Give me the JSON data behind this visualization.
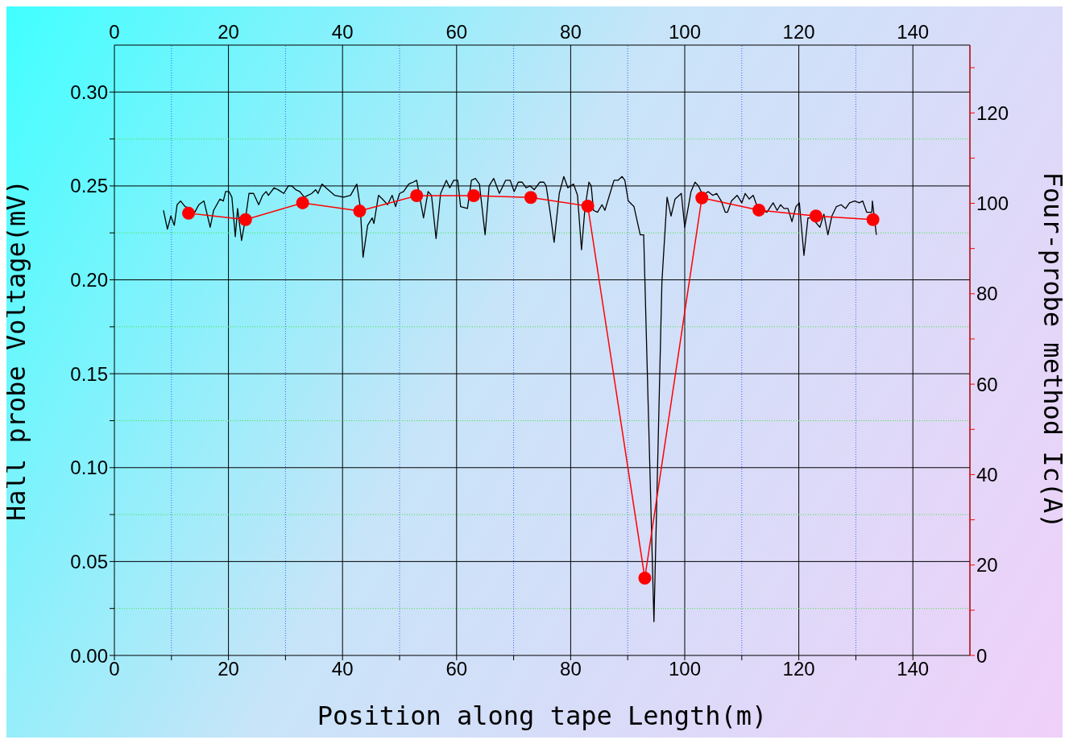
{
  "chart_data": {
    "type": "line",
    "xlabel": "Position along tape Length(m)",
    "ylabel": "Hall probe Voltage(mV)",
    "y2label": "Four-probe method Ic(A)",
    "xlim": [
      0,
      150
    ],
    "xticks": [
      0,
      {
        "value": 10,
        "label": null
      },
      20,
      {
        "value": 30,
        "label": null
      },
      40,
      {
        "value": 50,
        "label": null
      },
      60,
      {
        "value": 70,
        "label": null
      },
      80,
      {
        "value": 90,
        "label": null
      },
      100,
      {
        "value": 110,
        "label": null
      },
      120,
      {
        "value": 130,
        "label": null
      },
      140
    ],
    "x2lim": [
      0,
      150
    ],
    "x2ticks": [
      0,
      20,
      40,
      60,
      80,
      100,
      120,
      140
    ],
    "ylim": [
      0,
      0.325
    ],
    "yticks": [
      {
        "value": 0,
        "label": "0.00"
      },
      {
        "value": 0.025,
        "label": null
      },
      {
        "value": 0.05,
        "label": "0.05"
      },
      {
        "value": 0.075,
        "label": null
      },
      {
        "value": 0.1,
        "label": "0.10"
      },
      {
        "value": 0.125,
        "label": null
      },
      {
        "value": 0.15,
        "label": "0.15"
      },
      {
        "value": 0.175,
        "label": null
      },
      {
        "value": 0.2,
        "label": "0.20"
      },
      {
        "value": 0.225,
        "label": null
      },
      {
        "value": 0.25,
        "label": "0.25"
      },
      {
        "value": 0.275,
        "label": null
      },
      {
        "value": 0.3,
        "label": "0.30"
      }
    ],
    "y2lim": [
      0,
      135
    ],
    "y2ticks": [
      0,
      {
        "value": 10,
        "label": null
      },
      20,
      {
        "value": 30,
        "label": null
      },
      40,
      {
        "value": 50,
        "label": null
      },
      60,
      {
        "value": 70,
        "label": null
      },
      80,
      {
        "value": 90,
        "label": null
      },
      100,
      {
        "value": 110,
        "label": null
      },
      120,
      {
        "value": 130,
        "label": null
      }
    ],
    "grid": true,
    "series": [
      {
        "color": "#000000",
        "marker": "none",
        "line_style": "solid",
        "x": [
          8.6,
          9.3,
          9.9,
          10.5,
          11.0,
          11.6,
          12.4,
          13.4,
          14.1,
          14.8,
          15.7,
          16.8,
          17.4,
          18.5,
          19.1,
          19.5,
          20.1,
          20.6,
          21.2,
          21.6,
          22.3,
          23.0,
          23.6,
          24.4,
          25.3,
          26.0,
          26.6,
          27.0,
          28.0,
          28.7,
          29.7,
          30.5,
          31.1,
          31.8,
          32.5,
          33.3,
          34.6,
          35.3,
          35.7,
          36.4,
          37.1,
          38.6,
          40.2,
          41.4,
          42.5,
          43.1,
          43.6,
          44.4,
          45.2,
          45.5,
          46.3,
          47.0,
          47.9,
          48.7,
          49.3,
          50.0,
          50.7,
          51.6,
          52.4,
          53.0,
          54.2,
          55.0,
          55.6,
          56.4,
          57.2,
          58.2,
          58.8,
          59.5,
          60.2,
          60.7,
          61.9,
          62.6,
          63.3,
          64.0,
          65.0,
          65.7,
          66.5,
          67.5,
          68.6,
          69.4,
          70.1,
          70.8,
          71.5,
          72.2,
          72.9,
          73.6,
          74.6,
          75.3,
          75.7,
          76.4,
          77.1,
          78.0,
          78.8,
          79.5,
          80.5,
          81.2,
          81.9,
          82.5,
          83.2,
          83.6,
          84.0,
          84.7,
          85.5,
          86.0,
          86.9,
          87.6,
          88.3,
          89.0,
          89.5,
          90.1,
          91.1,
          92.2,
          92.8,
          94.6,
          96.0,
          96.9,
          97.6,
          98.3,
          99.4,
          100.0,
          101.1,
          101.8,
          102.4,
          103.2,
          104.1,
          104.9,
          105.6,
          106.4,
          107.1,
          107.5,
          108.2,
          109.2,
          110.0,
          110.6,
          111.3,
          112.0,
          112.7,
          114.4,
          115.5,
          116.2,
          116.8,
          117.4,
          118.1,
          118.8,
          119.5,
          120.1,
          120.9,
          121.6,
          122.3,
          123.7,
          124.4,
          125.1,
          125.8,
          126.6,
          127.4,
          128.2,
          128.9,
          129.8,
          130.6,
          131.2,
          131.9,
          132.8,
          132.9,
          133.6
        ],
        "values": [
          0.237,
          0.227,
          0.234,
          0.229,
          0.24,
          0.242,
          0.239,
          0.238,
          0.236,
          0.24,
          0.242,
          0.228,
          0.237,
          0.243,
          0.242,
          0.247,
          0.247,
          0.244,
          0.223,
          0.238,
          0.221,
          0.233,
          0.246,
          0.246,
          0.24,
          0.245,
          0.247,
          0.245,
          0.249,
          0.248,
          0.246,
          0.25,
          0.25,
          0.248,
          0.247,
          0.244,
          0.246,
          0.248,
          0.246,
          0.251,
          0.249,
          0.245,
          0.244,
          0.245,
          0.251,
          0.239,
          0.212,
          0.229,
          0.233,
          0.23,
          0.245,
          0.243,
          0.24,
          0.245,
          0.239,
          0.246,
          0.247,
          0.251,
          0.252,
          0.253,
          0.233,
          0.247,
          0.245,
          0.222,
          0.246,
          0.253,
          0.249,
          0.253,
          0.253,
          0.239,
          0.238,
          0.253,
          0.254,
          0.251,
          0.224,
          0.25,
          0.254,
          0.246,
          0.253,
          0.253,
          0.247,
          0.252,
          0.252,
          0.249,
          0.25,
          0.248,
          0.252,
          0.252,
          0.25,
          0.236,
          0.22,
          0.246,
          0.255,
          0.249,
          0.251,
          0.245,
          0.216,
          0.238,
          0.252,
          0.25,
          0.237,
          0.236,
          0.24,
          0.237,
          0.246,
          0.253,
          0.253,
          0.255,
          0.253,
          0.242,
          0.239,
          0.224,
          0.224,
          0.018,
          0.199,
          0.244,
          0.234,
          0.243,
          0.246,
          0.228,
          0.247,
          0.252,
          0.25,
          0.245,
          0.247,
          0.245,
          0.246,
          0.242,
          0.236,
          0.236,
          0.242,
          0.245,
          0.241,
          0.246,
          0.243,
          0.245,
          0.239,
          0.236,
          0.241,
          0.237,
          0.24,
          0.238,
          0.238,
          0.231,
          0.239,
          0.241,
          0.213,
          0.233,
          0.233,
          0.228,
          0.235,
          0.224,
          0.234,
          0.239,
          0.24,
          0.238,
          0.241,
          0.242,
          0.241,
          0.242,
          0.236,
          0.236,
          0.242,
          0.224
        ]
      },
      {
        "color": "#ff0000",
        "marker": "circle",
        "line_style": "solid",
        "axis": "y2",
        "x": [
          13,
          23,
          33,
          43,
          53,
          63,
          73,
          83,
          93,
          103,
          113,
          123,
          133
        ],
        "values": [
          97.8,
          96.4,
          100.1,
          98.3,
          101.7,
          101.7,
          101.3,
          99.4,
          17.1,
          101.2,
          98.5,
          97.2,
          96.4
        ]
      }
    ]
  }
}
